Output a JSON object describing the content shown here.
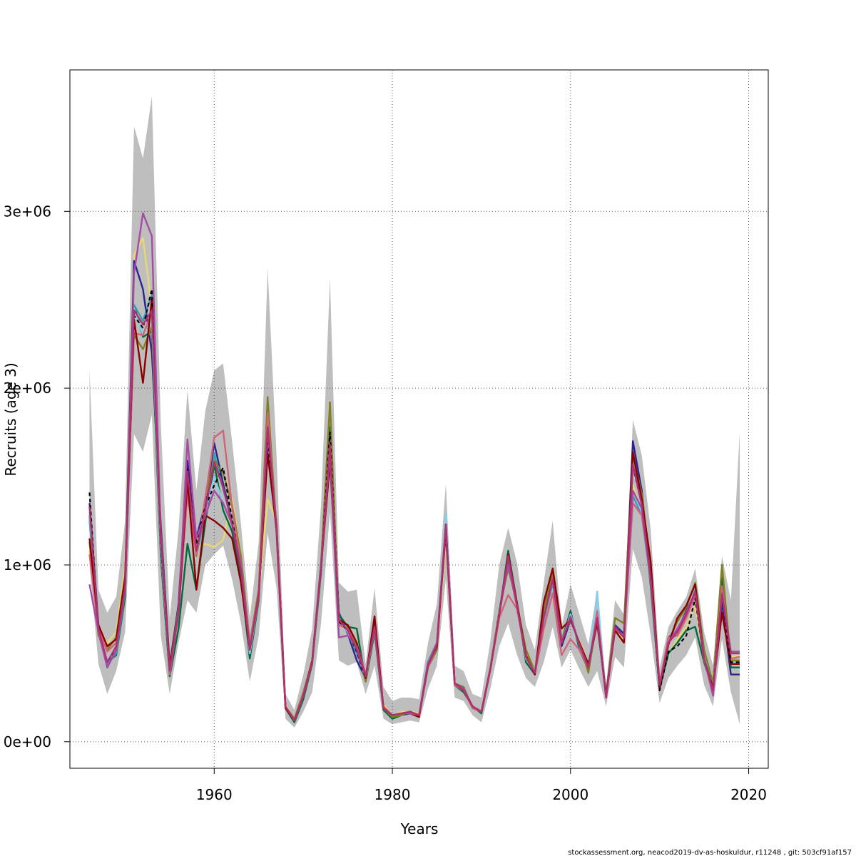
{
  "chart_data": {
    "type": "line",
    "title": "",
    "xlabel": "Years",
    "ylabel": "Recruits (age 3)",
    "xlim": [
      1943.8,
      2022.2
    ],
    "ylim": [
      -150000,
      3800000
    ],
    "xticks": [
      1960,
      1980,
      2000,
      2020
    ],
    "xtick_labels": [
      "1960",
      "1980",
      "2000",
      "2020"
    ],
    "yticks": [
      0,
      1000000,
      2000000,
      3000000
    ],
    "ytick_labels": [
      "0e+00",
      "1e+06",
      "2e+06",
      "3e+06"
    ],
    "grid": true,
    "grid_style": "dotted",
    "band_color": "#bebebe",
    "years": [
      1946,
      1947,
      1948,
      1949,
      1950,
      1951,
      1952,
      1953,
      1954,
      1955,
      1956,
      1957,
      1958,
      1959,
      1960,
      1961,
      1962,
      1963,
      1964,
      1965,
      1966,
      1967,
      1968,
      1969,
      1970,
      1971,
      1972,
      1973,
      1974,
      1975,
      1976,
      1977,
      1978,
      1979,
      1980,
      1981,
      1982,
      1983,
      1984,
      1985,
      1986,
      1987,
      1988,
      1989,
      1990,
      1991,
      1992,
      1993,
      1994,
      1995,
      1996,
      1997,
      1998,
      1999,
      2000,
      2001,
      2002,
      2003,
      2004,
      2005,
      2006,
      2007,
      2008,
      2009,
      2010,
      2011,
      2012,
      2013,
      2014,
      2015,
      2016,
      2017,
      2018,
      2019
    ],
    "confidence_band": {
      "upper": [
        2100000,
        860000,
        730000,
        820000,
        1250000,
        3480000,
        3300000,
        3650000,
        1800000,
        700000,
        1200000,
        1990000,
        1420000,
        1870000,
        2100000,
        2140000,
        1700000,
        1230000,
        700000,
        1130000,
        2680000,
        1620000,
        270000,
        180000,
        380000,
        640000,
        1340000,
        2620000,
        900000,
        850000,
        860000,
        440000,
        870000,
        310000,
        230000,
        250000,
        250000,
        240000,
        560000,
        780000,
        1460000,
        430000,
        400000,
        270000,
        250000,
        570000,
        1000000,
        1210000,
        1010000,
        660000,
        520000,
        900000,
        1250000,
        650000,
        890000,
        720000,
        550000,
        860000,
        320000,
        800000,
        720000,
        1820000,
        1620000,
        1200000,
        420000,
        650000,
        740000,
        820000,
        980000,
        620000,
        430000,
        1050000,
        800000,
        1750000
      ],
      "lower": [
        1000000,
        440000,
        270000,
        400000,
        620000,
        1740000,
        1640000,
        1850000,
        600000,
        270000,
        560000,
        800000,
        730000,
        1000000,
        1060000,
        1110000,
        920000,
        670000,
        340000,
        600000,
        1180000,
        870000,
        130000,
        80000,
        170000,
        280000,
        670000,
        1300000,
        460000,
        430000,
        450000,
        270000,
        430000,
        130000,
        100000,
        110000,
        120000,
        110000,
        300000,
        430000,
        920000,
        250000,
        230000,
        150000,
        110000,
        300000,
        540000,
        670000,
        490000,
        360000,
        310000,
        450000,
        650000,
        420000,
        520000,
        410000,
        310000,
        400000,
        200000,
        480000,
        420000,
        1090000,
        930000,
        600000,
        220000,
        360000,
        430000,
        490000,
        590000,
        320000,
        200000,
        580000,
        280000,
        100000
      ]
    },
    "series": [
      {
        "color": "#e8d774",
        "values": [
          1080000,
          640000,
          560000,
          620000,
          990000,
          2750000,
          2850000,
          2450000,
          1220000,
          420000,
          750000,
          1420000,
          1100000,
          1120000,
          1100000,
          1140000,
          1380000,
          1050000,
          520000,
          830000,
          1370000,
          1250000,
          210000,
          120000,
          270000,
          470000,
          1000000,
          1680000,
          680000,
          640000,
          570000,
          370000,
          630000,
          210000,
          150000,
          170000,
          170000,
          160000,
          420000,
          540000,
          1140000,
          330000,
          300000,
          190000,
          170000,
          410000,
          720000,
          980000,
          760000,
          500000,
          400000,
          660000,
          940000,
          570000,
          690000,
          570000,
          440000,
          700000,
          270000,
          660000,
          560000,
          1450000,
          1300000,
          880000,
          320000,
          500000,
          580000,
          650000,
          770000,
          470000,
          300000,
          840000,
          480000,
          490000
        ]
      },
      {
        "color": "#2a2390",
        "values": [
          1350000,
          660000,
          420000,
          520000,
          920000,
          2720000,
          2560000,
          2200000,
          1230000,
          430000,
          780000,
          1590000,
          1150000,
          1350000,
          1690000,
          1460000,
          1250000,
          980000,
          510000,
          830000,
          1700000,
          1230000,
          200000,
          120000,
          260000,
          460000,
          1010000,
          1620000,
          730000,
          610000,
          460000,
          360000,
          680000,
          190000,
          150000,
          160000,
          170000,
          150000,
          450000,
          560000,
          1180000,
          330000,
          290000,
          200000,
          170000,
          410000,
          720000,
          1060000,
          780000,
          480000,
          390000,
          700000,
          920000,
          540000,
          690000,
          560000,
          420000,
          690000,
          250000,
          660000,
          610000,
          1700000,
          1420000,
          920000,
          310000,
          590000,
          630000,
          740000,
          840000,
          450000,
          300000,
          790000,
          380000,
          380000
        ]
      },
      {
        "color": "#006b3c",
        "values": [
          1280000,
          610000,
          450000,
          490000,
          820000,
          2470000,
          2290000,
          2320000,
          1050000,
          370000,
          640000,
          1120000,
          860000,
          1240000,
          1570000,
          1310000,
          1190000,
          930000,
          470000,
          800000,
          1790000,
          1180000,
          190000,
          110000,
          240000,
          440000,
          960000,
          1780000,
          720000,
          650000,
          640000,
          340000,
          620000,
          180000,
          130000,
          150000,
          160000,
          150000,
          420000,
          550000,
          1280000,
          320000,
          280000,
          200000,
          160000,
          410000,
          720000,
          1080000,
          780000,
          450000,
          380000,
          690000,
          940000,
          570000,
          740000,
          520000,
          410000,
          680000,
          260000,
          650000,
          590000,
          1570000,
          1360000,
          880000,
          300000,
          500000,
          560000,
          630000,
          650000,
          450000,
          300000,
          930000,
          420000,
          420000
        ]
      },
      {
        "color": "#3b9ab2",
        "values": [
          1250000,
          650000,
          440000,
          500000,
          850000,
          2470000,
          2380000,
          2530000,
          1150000,
          400000,
          720000,
          1470000,
          1060000,
          1270000,
          1630000,
          1430000,
          1250000,
          980000,
          500000,
          820000,
          1730000,
          1230000,
          200000,
          120000,
          260000,
          450000,
          980000,
          1640000,
          690000,
          620000,
          500000,
          370000,
          640000,
          190000,
          150000,
          160000,
          160000,
          150000,
          450000,
          560000,
          1230000,
          330000,
          300000,
          200000,
          170000,
          410000,
          740000,
          1040000,
          760000,
          470000,
          400000,
          680000,
          900000,
          560000,
          720000,
          540000,
          430000,
          700000,
          250000,
          640000,
          590000,
          1390000,
          1280000,
          900000,
          320000,
          580000,
          640000,
          710000,
          860000,
          480000,
          300000,
          870000,
          450000,
          450000
        ]
      },
      {
        "color": "#808020",
        "values": [
          1130000,
          600000,
          520000,
          590000,
          940000,
          2300000,
          2220000,
          2350000,
          1180000,
          420000,
          760000,
          1420000,
          1050000,
          1380000,
          1590000,
          1520000,
          1340000,
          1050000,
          560000,
          860000,
          1950000,
          1200000,
          200000,
          130000,
          280000,
          460000,
          1010000,
          1920000,
          660000,
          640000,
          540000,
          340000,
          650000,
          190000,
          140000,
          150000,
          170000,
          150000,
          420000,
          520000,
          1280000,
          330000,
          310000,
          190000,
          170000,
          420000,
          740000,
          980000,
          780000,
          520000,
          400000,
          750000,
          950000,
          580000,
          690000,
          560000,
          390000,
          700000,
          270000,
          700000,
          670000,
          1620000,
          1400000,
          980000,
          330000,
          570000,
          680000,
          760000,
          900000,
          520000,
          330000,
          1000000,
          460000,
          460000
        ]
      },
      {
        "color": "#87ceeb",
        "values": [
          1300000,
          640000,
          460000,
          530000,
          860000,
          2450000,
          2300000,
          2400000,
          1100000,
          400000,
          730000,
          1500000,
          1100000,
          1300000,
          1500000,
          1350000,
          1240000,
          980000,
          500000,
          820000,
          1750000,
          1220000,
          200000,
          120000,
          260000,
          450000,
          990000,
          1660000,
          700000,
          620000,
          520000,
          360000,
          640000,
          190000,
          150000,
          160000,
          170000,
          150000,
          440000,
          560000,
          1290000,
          330000,
          290000,
          200000,
          170000,
          410000,
          730000,
          1050000,
          770000,
          470000,
          400000,
          690000,
          920000,
          560000,
          720000,
          560000,
          430000,
          850000,
          250000,
          650000,
          590000,
          1420000,
          1300000,
          920000,
          320000,
          570000,
          640000,
          720000,
          850000,
          480000,
          300000,
          860000,
          450000,
          450000
        ]
      },
      {
        "color": "#d0647a",
        "values": [
          1060000,
          640000,
          510000,
          560000,
          930000,
          2310000,
          2300000,
          2430000,
          1160000,
          380000,
          730000,
          1400000,
          1060000,
          1380000,
          1720000,
          1760000,
          1330000,
          1000000,
          560000,
          830000,
          1860000,
          1180000,
          200000,
          120000,
          270000,
          460000,
          1000000,
          1700000,
          660000,
          640000,
          560000,
          380000,
          630000,
          200000,
          150000,
          160000,
          170000,
          150000,
          420000,
          540000,
          1200000,
          320000,
          290000,
          190000,
          170000,
          410000,
          700000,
          830000,
          750000,
          480000,
          380000,
          640000,
          840000,
          490000,
          580000,
          520000,
          420000,
          740000,
          260000,
          640000,
          590000,
          1350000,
          1280000,
          940000,
          330000,
          590000,
          600000,
          700000,
          830000,
          460000,
          300000,
          880000,
          470000,
          480000
        ]
      },
      {
        "color": "#8b0000",
        "values": [
          1150000,
          660000,
          540000,
          580000,
          930000,
          2390000,
          2030000,
          2510000,
          1150000,
          430000,
          730000,
          1480000,
          860000,
          1280000,
          1250000,
          1210000,
          1150000,
          900000,
          520000,
          830000,
          1630000,
          1200000,
          190000,
          120000,
          260000,
          460000,
          990000,
          1580000,
          690000,
          660000,
          560000,
          360000,
          710000,
          190000,
          150000,
          160000,
          160000,
          140000,
          440000,
          540000,
          1210000,
          330000,
          300000,
          200000,
          170000,
          410000,
          720000,
          1060000,
          780000,
          490000,
          380000,
          790000,
          980000,
          640000,
          690000,
          560000,
          440000,
          670000,
          270000,
          630000,
          560000,
          1640000,
          1370000,
          1020000,
          300000,
          550000,
          700000,
          770000,
          890000,
          470000,
          300000,
          730000,
          440000,
          440000
        ]
      },
      {
        "color": "#000000",
        "dashed": true,
        "values": [
          1410000,
          620000,
          450000,
          530000,
          890000,
          2410000,
          2340000,
          2560000,
          1120000,
          410000,
          740000,
          1540000,
          1120000,
          1330000,
          1450000,
          1550000,
          1260000,
          970000,
          520000,
          820000,
          1720000,
          1230000,
          200000,
          120000,
          260000,
          450000,
          990000,
          1750000,
          680000,
          630000,
          510000,
          360000,
          650000,
          190000,
          150000,
          160000,
          170000,
          150000,
          430000,
          550000,
          1230000,
          330000,
          300000,
          200000,
          170000,
          410000,
          730000,
          1040000,
          770000,
          480000,
          390000,
          700000,
          920000,
          560000,
          700000,
          550000,
          420000,
          700000,
          260000,
          650000,
          590000,
          1560000,
          1340000,
          930000,
          290000,
          510000,
          540000,
          600000,
          810000,
          470000,
          300000,
          840000,
          450000,
          450000
        ]
      },
      {
        "color": "#a64ca6",
        "values": [
          890000,
          620000,
          420000,
          520000,
          860000,
          2650000,
          2990000,
          2860000,
          1160000,
          400000,
          730000,
          1710000,
          1150000,
          1280000,
          1420000,
          1350000,
          1230000,
          1000000,
          530000,
          810000,
          1770000,
          1220000,
          200000,
          120000,
          260000,
          450000,
          1000000,
          1630000,
          590000,
          600000,
          540000,
          370000,
          640000,
          190000,
          150000,
          160000,
          160000,
          150000,
          440000,
          560000,
          1230000,
          330000,
          300000,
          200000,
          170000,
          410000,
          720000,
          1000000,
          760000,
          480000,
          390000,
          700000,
          920000,
          560000,
          710000,
          550000,
          420000,
          700000,
          250000,
          650000,
          590000,
          1420000,
          1320000,
          910000,
          320000,
          560000,
          640000,
          730000,
          850000,
          470000,
          260000,
          840000,
          510000,
          510000
        ]
      },
      {
        "color": "#b0306e",
        "values": [
          1330000,
          640000,
          450000,
          540000,
          880000,
          2440000,
          2360000,
          2440000,
          1140000,
          410000,
          740000,
          1530000,
          1080000,
          1310000,
          1580000,
          1440000,
          1230000,
          970000,
          520000,
          830000,
          1780000,
          1210000,
          200000,
          120000,
          260000,
          450000,
          990000,
          1680000,
          690000,
          630000,
          520000,
          370000,
          650000,
          190000,
          150000,
          160000,
          170000,
          150000,
          430000,
          550000,
          1230000,
          330000,
          290000,
          200000,
          170000,
          410000,
          720000,
          1050000,
          770000,
          480000,
          390000,
          700000,
          920000,
          560000,
          700000,
          550000,
          420000,
          700000,
          250000,
          650000,
          590000,
          1570000,
          1340000,
          930000,
          320000,
          560000,
          620000,
          720000,
          850000,
          470000,
          290000,
          830000,
          500000,
          500000
        ]
      }
    ]
  },
  "footer_note": "stockassessment.org, neacod2019-dv-as-hoskuldur, r11248 , git: 503cf91af157"
}
